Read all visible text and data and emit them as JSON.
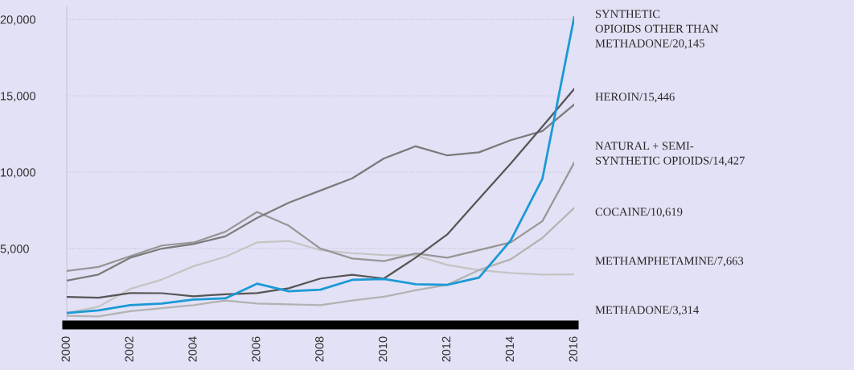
{
  "chart_data": {
    "type": "line",
    "x": [
      2000,
      2001,
      2002,
      2003,
      2004,
      2005,
      2006,
      2007,
      2008,
      2009,
      2010,
      2011,
      2012,
      2013,
      2014,
      2015,
      2016
    ],
    "series": [
      {
        "name": "SYNTHETIC\nOPIOIDS OTHER THAN\nMETHADONE/20,145",
        "color": "#1a9ad6",
        "values": [
          780,
          960,
          1300,
          1400,
          1660,
          1740,
          2700,
          2210,
          2310,
          2950,
          3010,
          2670,
          2630,
          3100,
          5540,
          9580,
          20145
        ]
      },
      {
        "name": "HEROIN/15,446",
        "color": "#555555",
        "values": [
          1840,
          1780,
          2090,
          2080,
          1880,
          2010,
          2090,
          2400,
          3040,
          3280,
          3040,
          4400,
          5930,
          8260,
          10570,
          12990,
          15446
        ]
      },
      {
        "name": "NATURAL + SEMI-\nSYNTHETIC OPIOIDS/14,427",
        "color": "#7a7a7a",
        "values": [
          2900,
          3300,
          4400,
          5000,
          5300,
          5800,
          7000,
          8000,
          8800,
          9600,
          10900,
          11700,
          11100,
          11300,
          12100,
          12700,
          14427
        ]
      },
      {
        "name": "COCAINE/10,619",
        "color": "#969696",
        "values": [
          3540,
          3800,
          4500,
          5200,
          5400,
          6100,
          7400,
          6500,
          5000,
          4350,
          4180,
          4680,
          4400,
          4900,
          5400,
          6800,
          10619
        ]
      },
      {
        "name": "METHAMPHETAMINE/7,663",
        "color": "#b2b2b2",
        "values": [
          600,
          560,
          900,
          1100,
          1300,
          1600,
          1400,
          1350,
          1300,
          1600,
          1850,
          2270,
          2630,
          3600,
          4300,
          5700,
          7663
        ]
      },
      {
        "name": "METHADONE/3,314",
        "color": "#c4c4c4",
        "values": [
          790,
          1190,
          2360,
          2970,
          3850,
          4460,
          5400,
          5500,
          4900,
          4700,
          4580,
          4550,
          3930,
          3590,
          3400,
          3300,
          3314
        ]
      }
    ],
    "xlim": [
      2000,
      2016
    ],
    "xticks": [
      2000,
      2002,
      2004,
      2006,
      2008,
      2010,
      2012,
      2014,
      2016
    ],
    "ylim": [
      0,
      20800
    ],
    "yticks": [
      {
        "value": 5000,
        "label": "5,000"
      },
      {
        "value": 10000,
        "label": "10,000"
      },
      {
        "value": 15000,
        "label": "15,000"
      },
      {
        "value": 20000,
        "label": "20,000"
      }
    ],
    "grid": "y",
    "line_style": "solid",
    "marker": "none"
  }
}
